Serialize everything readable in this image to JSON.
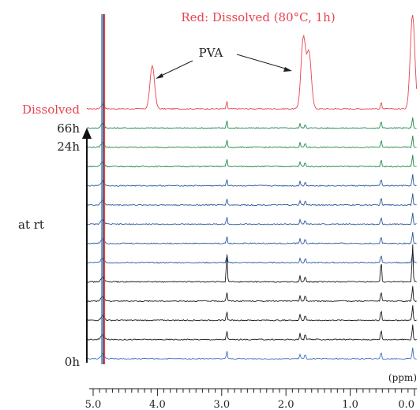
{
  "chart_data": {
    "type": "line",
    "title": "Red: Dissolved (80°C, 1h)",
    "xlabel": "(ppm)",
    "ylabel": "",
    "xlim": [
      5.0,
      0.0
    ],
    "x_reversed": true,
    "x_ticks": [
      "5.0",
      "4.0",
      "3.0",
      "2.0",
      "1.0",
      "0.0"
    ],
    "grid": false,
    "labels": {
      "dissolved": "Dissolved",
      "t66": "66h",
      "t24": "24h",
      "rt": "at rt",
      "t0": "0h"
    },
    "annotation": "PVA",
    "colors": {
      "dissolved": "#e8434f",
      "green": "#1f8a4c",
      "blue": "#2a5a9c",
      "black": "#1a1a1a",
      "bottom_blue": "#3d6fc0"
    },
    "series": [
      {
        "name": "Dissolved",
        "color": "dissolved",
        "peaks": [
          [
            4.08,
            55
          ],
          [
            2.92,
            10
          ],
          [
            1.73,
            90
          ],
          [
            1.64,
            70
          ],
          [
            0.52,
            10
          ],
          [
            0.03,
            120
          ]
        ]
      },
      {
        "name": "66h",
        "color": "green",
        "peaks": [
          [
            2.92,
            10
          ],
          [
            1.78,
            6
          ],
          [
            1.7,
            6
          ],
          [
            0.52,
            10
          ],
          [
            0.03,
            15
          ]
        ]
      },
      {
        "name": "",
        "color": "green",
        "peaks": [
          [
            2.92,
            10
          ],
          [
            1.78,
            6
          ],
          [
            1.7,
            6
          ],
          [
            0.52,
            10
          ],
          [
            0.03,
            15
          ]
        ]
      },
      {
        "name": "24h",
        "color": "green",
        "peaks": [
          [
            2.92,
            10
          ],
          [
            1.78,
            6
          ],
          [
            1.7,
            6
          ],
          [
            0.52,
            10
          ],
          [
            0.03,
            15
          ]
        ]
      },
      {
        "name": "",
        "color": "blue",
        "peaks": [
          [
            2.92,
            9
          ],
          [
            1.78,
            6
          ],
          [
            1.7,
            6
          ],
          [
            0.52,
            10
          ],
          [
            0.03,
            15
          ]
        ]
      },
      {
        "name": "",
        "color": "blue",
        "peaks": [
          [
            2.92,
            9
          ],
          [
            1.78,
            6
          ],
          [
            1.7,
            6
          ],
          [
            0.52,
            10
          ],
          [
            0.03,
            15
          ]
        ]
      },
      {
        "name": "",
        "color": "blue",
        "peaks": [
          [
            2.92,
            9
          ],
          [
            1.78,
            6
          ],
          [
            1.7,
            6
          ],
          [
            0.52,
            10
          ],
          [
            0.03,
            15
          ]
        ]
      },
      {
        "name": "",
        "color": "blue",
        "peaks": [
          [
            2.92,
            9
          ],
          [
            1.78,
            6
          ],
          [
            1.7,
            6
          ],
          [
            0.52,
            10
          ],
          [
            0.03,
            15
          ]
        ]
      },
      {
        "name": "",
        "color": "blue",
        "peaks": [
          [
            2.92,
            9
          ],
          [
            1.78,
            6
          ],
          [
            1.7,
            6
          ],
          [
            0.52,
            10
          ],
          [
            0.03,
            15
          ]
        ]
      },
      {
        "name": "",
        "color": "black",
        "peaks": [
          [
            2.92,
            38
          ],
          [
            1.78,
            8
          ],
          [
            1.7,
            8
          ],
          [
            0.52,
            30
          ],
          [
            0.03,
            50
          ]
        ]
      },
      {
        "name": "",
        "color": "black",
        "peaks": [
          [
            2.92,
            12
          ],
          [
            1.78,
            8
          ],
          [
            1.7,
            8
          ],
          [
            0.52,
            14
          ],
          [
            0.03,
            20
          ]
        ]
      },
      {
        "name": "",
        "color": "black",
        "peaks": [
          [
            2.92,
            12
          ],
          [
            1.78,
            8
          ],
          [
            1.7,
            8
          ],
          [
            0.52,
            14
          ],
          [
            0.03,
            20
          ]
        ]
      },
      {
        "name": "",
        "color": "black",
        "peaks": [
          [
            2.92,
            12
          ],
          [
            1.78,
            8
          ],
          [
            1.7,
            8
          ],
          [
            0.52,
            14
          ],
          [
            0.03,
            20
          ]
        ]
      },
      {
        "name": "0h",
        "color": "bottom_blue",
        "peaks": [
          [
            2.92,
            10
          ],
          [
            1.78,
            6
          ],
          [
            1.7,
            6
          ],
          [
            0.52,
            10
          ],
          [
            0.03,
            15
          ]
        ]
      }
    ]
  }
}
